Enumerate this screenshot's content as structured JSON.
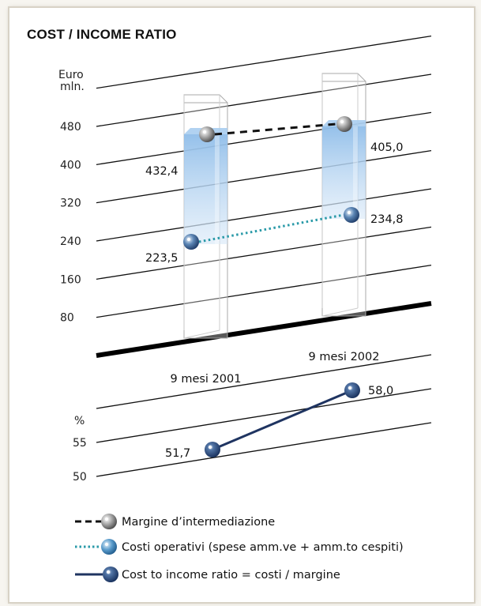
{
  "chart_data": [
    {
      "type": "bar",
      "title": "COST  / INCOME RATIO",
      "ylabel": "Euro\nmln.",
      "yticks": [
        80,
        160,
        240,
        320,
        400,
        480
      ],
      "categories": [
        "9 mesi 2001",
        "9 mesi 2002"
      ],
      "series": [
        {
          "name": "Margine d’intermediazione",
          "values": [
            432.4,
            405.0
          ],
          "labels": [
            "432,4",
            "405,0"
          ]
        },
        {
          "name": "Costi operativi (spese amm.ve + amm.to cespiti)",
          "values": [
            223.5,
            234.8
          ],
          "labels": [
            "223,5",
            "234,8"
          ]
        }
      ]
    },
    {
      "type": "line",
      "ylabel": "%",
      "yticks": [
        50,
        55
      ],
      "categories": [
        "9 mesi 2001",
        "9 mesi 2002"
      ],
      "series": [
        {
          "name": "Cost to income ratio = costi / margine",
          "values": [
            51.7,
            58.0
          ],
          "labels": [
            "51,7",
            "58,0"
          ]
        }
      ]
    }
  ],
  "legend": [
    {
      "label": "Margine d’intermediazione"
    },
    {
      "label": "Costi operativi (spese amm.ve + amm.to cespiti)"
    },
    {
      "label": "Cost to income ratio = costi / margine"
    }
  ],
  "colors": {
    "margin_line": "#111111",
    "cost_line": "#2a9aa8",
    "ratio_line": "#1f3461",
    "bar_fill": "#9cc6ec"
  }
}
